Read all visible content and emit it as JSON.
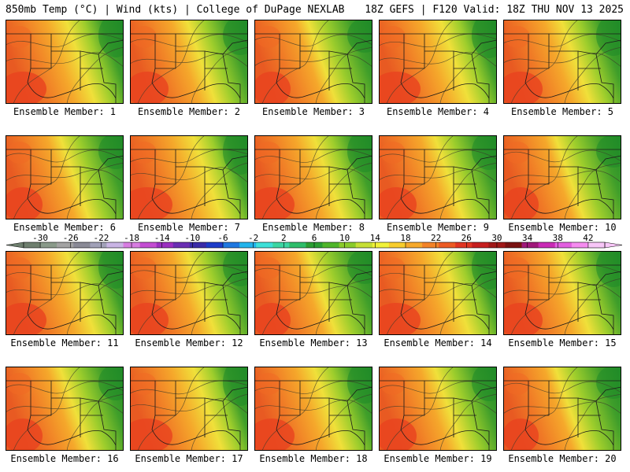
{
  "header": {
    "title_left": "850mb Temp (°C) | Wind (kts) | College of DuPage NEXLAB",
    "title_right": "18Z GEFS | F120 Valid: 18Z THU NOV 13 2025"
  },
  "panel_label_prefix": "Ensemble Member:",
  "members": [
    1,
    2,
    3,
    4,
    5,
    6,
    7,
    8,
    9,
    10,
    11,
    12,
    13,
    14,
    15,
    16,
    17,
    18,
    19,
    20
  ],
  "colorbar": {
    "tick_labels": [
      "-30",
      "-26",
      "-22",
      "-18",
      "-14",
      "-10",
      "-6",
      "-2",
      "2",
      "6",
      "10",
      "14",
      "18",
      "22",
      "26",
      "30",
      "34",
      "38",
      "42"
    ],
    "colors": [
      "#6e7f6e",
      "#8a9a8a",
      "#a3a3a3",
      "#8a8a96",
      "#a1a1b8",
      "#c9b4e4",
      "#d77de1",
      "#c34dd2",
      "#9b2fc1",
      "#6a2fb3",
      "#3a2ca8",
      "#1d3cc9",
      "#1f78e0",
      "#22b4ec",
      "#3ee0d8",
      "#3cd6a2",
      "#2ebd6a",
      "#2a9e32",
      "#4fb52a",
      "#8bcb2b",
      "#c6df36",
      "#f1f23a",
      "#f8cd2d",
      "#f6a92b",
      "#f28327",
      "#ec5b23",
      "#e13522",
      "#c61f1f",
      "#a01818",
      "#7a1212",
      "#a0187a",
      "#c92ab5",
      "#e25fe0",
      "#f58cf0",
      "#f8c6f8"
    ]
  }
}
